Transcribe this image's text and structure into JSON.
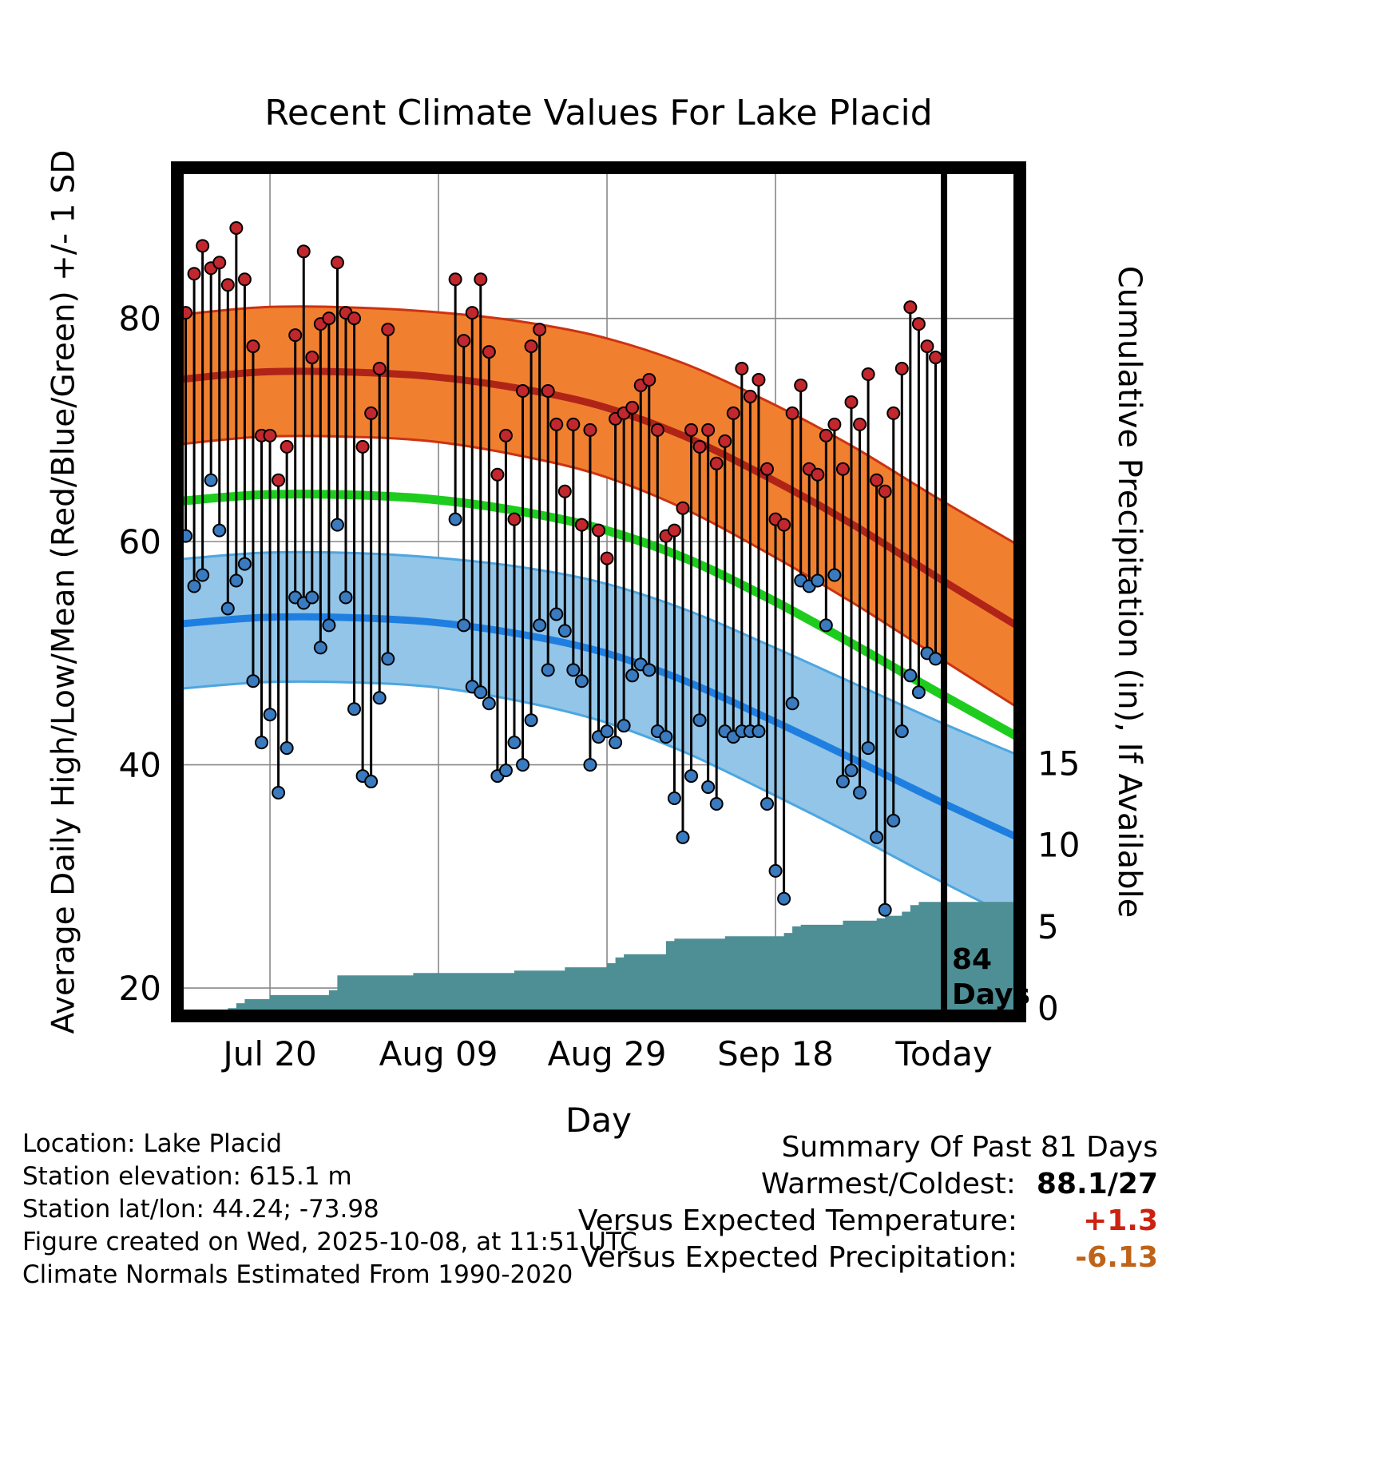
{
  "title": "Recent Climate Values For Lake Placid",
  "axes": {
    "x_label": "Day",
    "left_label": "Average Daily High/Low/Mean (Red/Blue/Green) +/- 1 SD",
    "right_label": "Cumulative Precipitation (in), If Available",
    "x_ticks": [
      {
        "day": 10,
        "label": "Jul 20"
      },
      {
        "day": 30,
        "label": "Aug 09"
      },
      {
        "day": 50,
        "label": "Aug 29"
      },
      {
        "day": 70,
        "label": "Sep 18"
      },
      {
        "day": 90,
        "label": "Today"
      }
    ],
    "left_ticks": [
      20,
      40,
      60,
      80
    ],
    "right_ticks": [
      0,
      5,
      10,
      15
    ],
    "x_range": [
      -1,
      99
    ],
    "temp_range": [
      17.5,
      93.5
    ],
    "precip_axis": {
      "min": 0,
      "max": 15
    }
  },
  "chart_data": {
    "type": "combo",
    "description": "Daily high/low temperature stems (red/blue dots), climate normal bands +/- 1 SD (orange=high, light blue=low), green mean line, teal cumulative precipitation area. Day index 0 = Jul 10, day 90 = Today (Oct 8).",
    "daily": {
      "days": [
        0,
        1,
        2,
        3,
        4,
        5,
        6,
        7,
        8,
        9,
        10,
        11,
        12,
        13,
        14,
        15,
        16,
        17,
        18,
        19,
        20,
        21,
        22,
        23,
        24,
        32,
        33,
        34,
        35,
        36,
        37,
        38,
        39,
        40,
        41,
        42,
        43,
        44,
        45,
        46,
        47,
        48,
        49,
        50,
        51,
        52,
        53,
        54,
        55,
        56,
        57,
        58,
        59,
        60,
        61,
        62,
        63,
        64,
        65,
        66,
        67,
        68,
        69,
        70,
        71,
        72,
        73,
        74,
        75,
        76,
        77,
        78,
        79,
        80,
        81,
        82,
        83,
        84,
        85,
        86,
        87,
        88,
        89
      ],
      "high": [
        80.5,
        84,
        86.5,
        84.5,
        85,
        83,
        88.1,
        83.5,
        77.5,
        69.5,
        69.5,
        65.5,
        68.5,
        78.5,
        86,
        76.5,
        79.5,
        80,
        85,
        80.5,
        80,
        68.5,
        71.5,
        75.5,
        79,
        83.5,
        78,
        80.5,
        83.5,
        77,
        66,
        69.5,
        62,
        73.5,
        77.5,
        79,
        73.5,
        70.5,
        64.5,
        70.5,
        61.5,
        70,
        61,
        58.5,
        71,
        71.5,
        72,
        74,
        74.5,
        70,
        60.5,
        61,
        63,
        70,
        68.5,
        70,
        67,
        69,
        71.5,
        75.5,
        73,
        74.5,
        66.5,
        62,
        61.5,
        71.5,
        74,
        66.5,
        66,
        69.5,
        70.5,
        66.5,
        72.5,
        70.5,
        75,
        65.5,
        64.5,
        71.5,
        75.5,
        81,
        79.5,
        77.5,
        76.5
      ],
      "low": [
        60.5,
        56,
        57,
        65.5,
        61,
        54,
        56.5,
        58,
        47.5,
        42,
        44.5,
        37.5,
        41.5,
        55,
        54.5,
        55,
        50.5,
        52.5,
        61.5,
        55,
        45,
        39,
        38.5,
        46,
        49.5,
        62,
        52.5,
        47,
        46.5,
        45.5,
        39,
        39.5,
        42,
        40,
        44,
        52.5,
        48.5,
        53.5,
        52,
        48.5,
        47.5,
        40,
        42.5,
        43,
        42,
        43.5,
        48,
        49,
        48.5,
        43,
        42.5,
        37,
        33.5,
        39,
        44,
        38,
        36.5,
        43,
        42.5,
        43,
        43,
        43,
        36.5,
        30.5,
        28,
        45.5,
        56.5,
        56,
        56.5,
        52.5,
        57,
        38.5,
        39.5,
        37.5,
        41.5,
        33.5,
        27,
        35,
        43,
        48,
        46.5,
        50,
        49.5
      ]
    },
    "normals": {
      "days": [
        -1,
        9,
        19,
        29,
        39,
        49,
        59,
        69,
        79,
        89,
        99
      ],
      "high_upper": [
        80.3,
        81.0,
        81.0,
        80.6,
        79.8,
        78.4,
        76.0,
        72.6,
        68.6,
        64.0,
        59.6
      ],
      "high_mean": [
        74.5,
        75.2,
        75.2,
        74.8,
        73.8,
        72.2,
        69.5,
        65.8,
        61.6,
        56.9,
        52.3
      ],
      "high_lower": [
        68.7,
        69.4,
        69.4,
        69.0,
        67.8,
        66.0,
        63.0,
        59.0,
        54.6,
        49.8,
        45.0
      ],
      "mean": [
        63.6,
        64.2,
        64.2,
        63.8,
        62.8,
        61.2,
        58.6,
        55.0,
        50.9,
        46.6,
        42.4
      ],
      "low_upper": [
        58.4,
        59.0,
        59.0,
        58.6,
        57.8,
        56.4,
        54.0,
        50.8,
        47.4,
        44.0,
        40.8
      ],
      "low_mean": [
        52.6,
        53.2,
        53.2,
        52.8,
        51.8,
        50.2,
        47.6,
        44.2,
        40.6,
        36.9,
        33.4
      ],
      "low_lower": [
        46.8,
        47.4,
        47.4,
        47.0,
        45.8,
        44.0,
        41.2,
        37.6,
        33.8,
        29.8,
        26.0
      ]
    },
    "cumulative_precip": {
      "days": [
        5,
        6,
        7,
        9,
        10,
        16,
        17,
        18,
        26,
        27,
        38,
        39,
        44,
        45,
        49,
        50,
        51,
        52,
        56,
        57,
        58,
        63,
        64,
        69,
        71,
        72,
        73,
        77,
        78,
        82,
        83,
        85,
        86,
        87,
        99
      ],
      "values": [
        0,
        0.3,
        0.55,
        0.55,
        0.8,
        0.8,
        1.1,
        2.0,
        2.0,
        2.15,
        2.15,
        2.3,
        2.3,
        2.5,
        2.5,
        2.75,
        3.1,
        3.3,
        3.3,
        4.1,
        4.25,
        4.25,
        4.4,
        4.4,
        4.6,
        5.0,
        5.1,
        5.1,
        5.35,
        5.5,
        5.65,
        5.9,
        6.3,
        6.5,
        6.5
      ]
    },
    "today_day": 90,
    "today_label": {
      "line1": "84",
      "line2": "Days"
    }
  },
  "colors": {
    "high_band": "#F08030",
    "high_band_edge": "#CC3311",
    "high_mean_line": "#B02418",
    "mean_line": "#1ECC1E",
    "low_band": "#92C5E8",
    "low_band_edge": "#4DA6E0",
    "low_mean_line": "#1F7FE0",
    "precip_fill": "#4E8F96",
    "dot_high": "#C1272D",
    "dot_low": "#3A7ABF",
    "stem": "#000000",
    "today_line": "#000000",
    "grid": "#888888",
    "warm_anomaly": "#CC2211",
    "precip_anomaly": "#BF6318"
  },
  "footer": {
    "lines": [
      "Location: Lake Placid",
      "Station elevation: 615.1 m",
      "Station lat/lon: 44.24; -73.98",
      "Figure created on Wed, 2025-10-08, at 11:51 UTC",
      "Climate Normals Estimated From 1990-2020"
    ]
  },
  "summary": {
    "title": "Summary Of Past 81 Days",
    "rows": [
      {
        "label": "Warmest/Coldest:",
        "value": "88.1/27",
        "color": "#000000"
      },
      {
        "label": "Versus Expected Temperature:",
        "value": "+1.3",
        "color": "#CC2211"
      },
      {
        "label": "Versus Expected Precipitation:",
        "value": "-6.13",
        "color": "#BF6318"
      }
    ]
  }
}
